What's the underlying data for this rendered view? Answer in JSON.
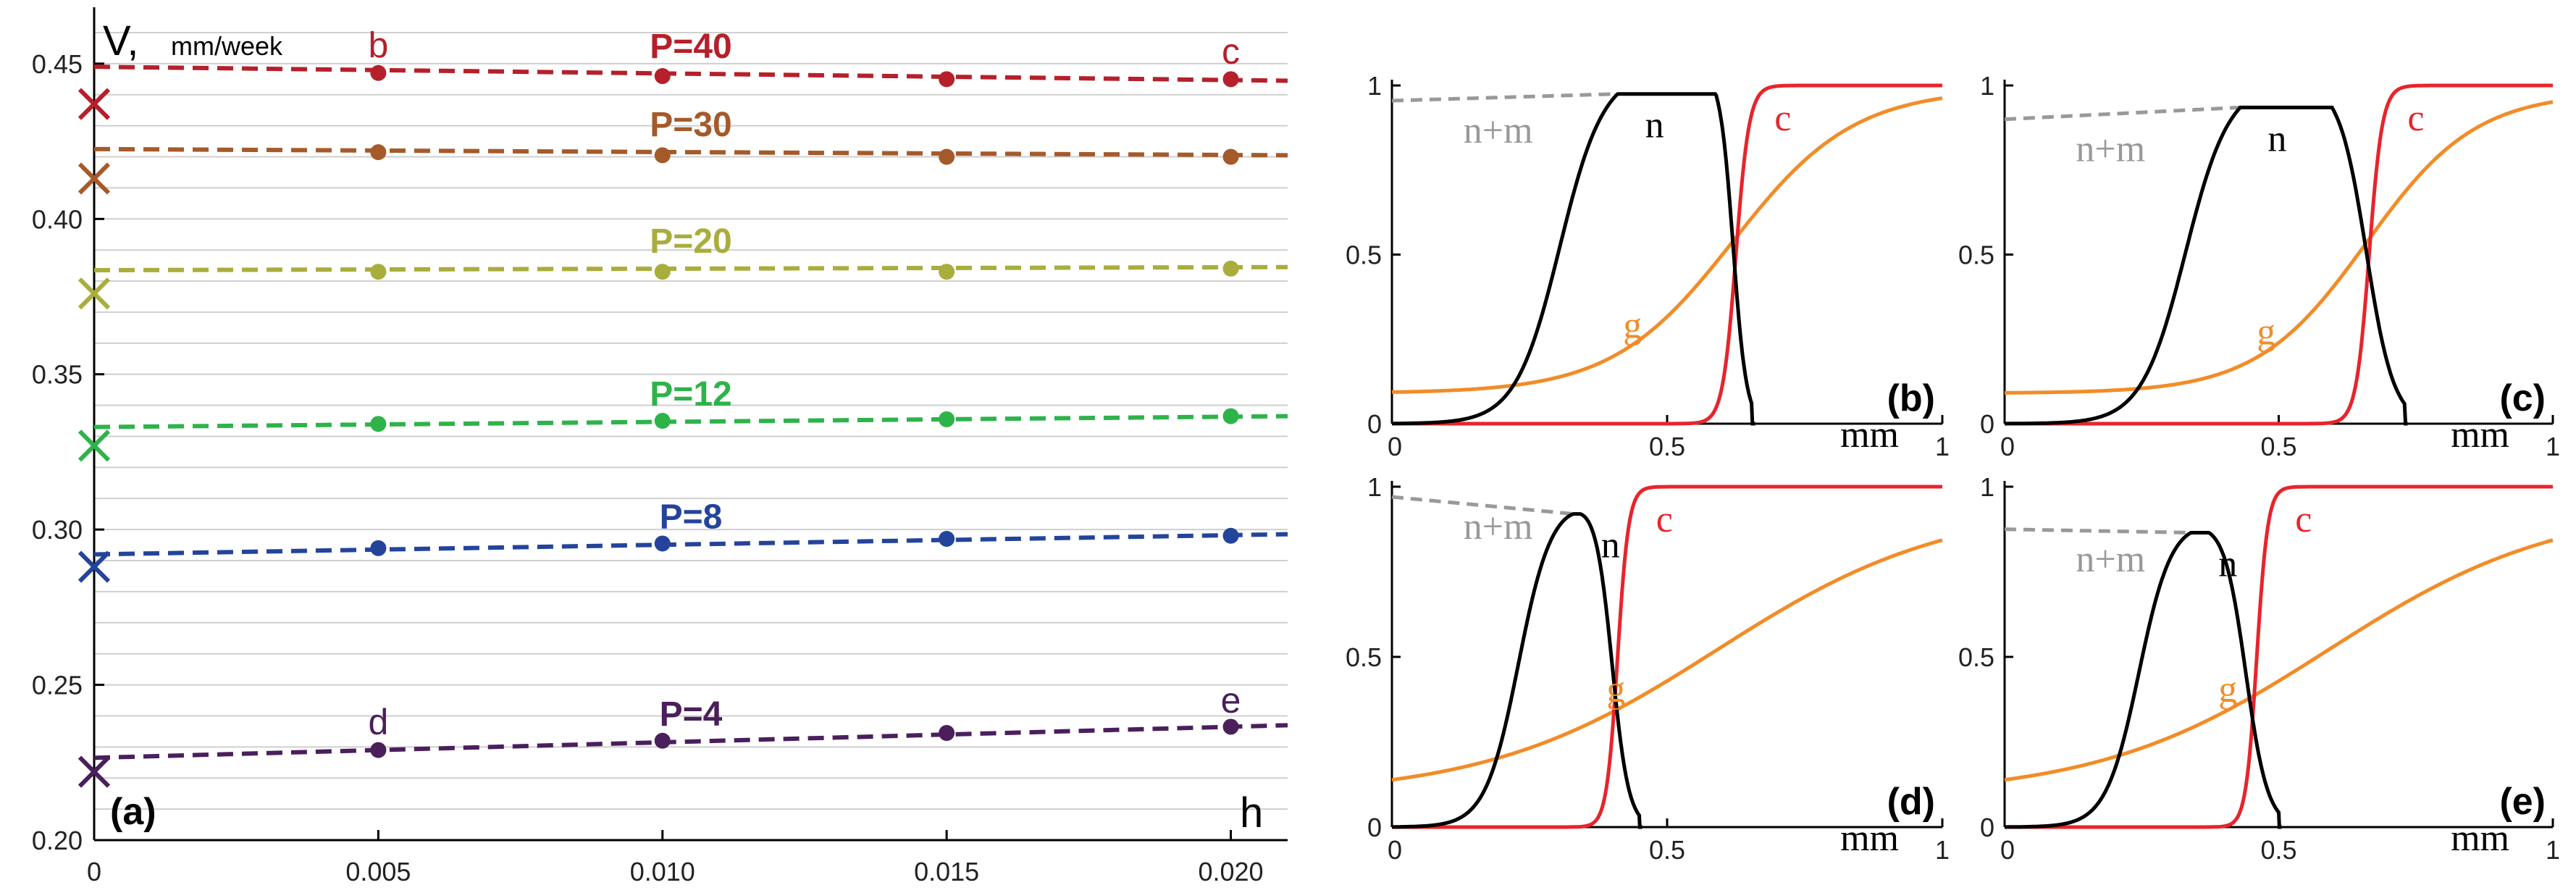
{
  "chart_data": [
    {
      "id": "a",
      "type": "line",
      "panel_label": "(a)",
      "ylabel": "V,",
      "ylabel_unit": "mm/week",
      "xlabel": "h",
      "xlim": [
        0,
        0.021
      ],
      "ylim": [
        0.2,
        0.46
      ],
      "x_ticks": [
        0,
        0.005,
        0.01,
        0.015,
        0.02
      ],
      "x_tick_labels": [
        "0",
        "0.005",
        "0.010",
        "0.015",
        "0.020"
      ],
      "y_ticks": [
        0.2,
        0.25,
        0.3,
        0.35,
        0.4,
        0.45
      ],
      "y_tick_labels": [
        "0.20",
        "0.25",
        "0.30",
        "0.35",
        "0.40",
        "0.45"
      ],
      "gridlines_every": 0.01,
      "x_points": [
        0.005,
        0.01,
        0.015,
        0.02
      ],
      "series": [
        {
          "name": "P=40",
          "color": "#b5202b",
          "fit": [
            0.449,
            0.4445
          ],
          "points": [
            0.447,
            0.446,
            0.445,
            0.445
          ],
          "limit": 0.437
        },
        {
          "name": "P=30",
          "color": "#a55a2a",
          "fit": [
            0.4225,
            0.4205
          ],
          "points": [
            0.4215,
            0.4205,
            0.42,
            0.42
          ],
          "limit": 0.413
        },
        {
          "name": "P=20",
          "color": "#a9ad3c",
          "fit": [
            0.3835,
            0.3845
          ],
          "points": [
            0.383,
            0.383,
            0.383,
            0.384
          ],
          "limit": 0.376
        },
        {
          "name": "P=12",
          "color": "#2eb34a",
          "fit": [
            0.333,
            0.3365
          ],
          "points": [
            0.334,
            0.335,
            0.3355,
            0.3365
          ],
          "limit": 0.327
        },
        {
          "name": "P=8",
          "color": "#24449b",
          "fit": [
            0.292,
            0.2985
          ],
          "points": [
            0.294,
            0.2955,
            0.297,
            0.298
          ],
          "limit": 0.288
        },
        {
          "name": "P=4",
          "color": "#4a1f5c",
          "fit": [
            0.2265,
            0.237
          ],
          "points": [
            0.229,
            0.232,
            0.2345,
            0.2365
          ],
          "limit": 0.222
        }
      ],
      "annotations": [
        {
          "text": "b",
          "x": 0.005,
          "y": 0.452,
          "color": "#b5202b"
        },
        {
          "text": "c",
          "x": 0.02,
          "y": 0.45,
          "color": "#b5202b"
        },
        {
          "text": "d",
          "x": 0.005,
          "y": 0.234,
          "color": "#4a1f5c"
        },
        {
          "text": "e",
          "x": 0.02,
          "y": 0.241,
          "color": "#4a1f5c"
        }
      ]
    },
    {
      "id": "b",
      "type": "line",
      "panel_label": "(b)",
      "xlabel": "mm",
      "xlim": [
        0,
        1
      ],
      "ylim": [
        0,
        1
      ],
      "x_tick_labels": [
        "0",
        "0.5",
        "1"
      ],
      "y_tick_labels": [
        "0",
        "0.5",
        "1"
      ],
      "labels": {
        "nm": "n+m",
        "n": "n",
        "g": "g",
        "c": "c"
      },
      "params": {
        "n_rise_mid": 0.305,
        "n_rise_w": 0.04,
        "n_peak_x": 0.41,
        "n_peak": 0.975,
        "n_fall_mid": 0.62,
        "n_fall_w": 0.012,
        "n_end": 0.655,
        "nm_left": 0.955,
        "g_base": 0.09,
        "g_top": 0.99,
        "g_mid": 0.62,
        "g_w": 0.11,
        "c_mid": 0.625,
        "c_w": 0.012
      }
    },
    {
      "id": "c",
      "type": "line",
      "panel_label": "(c)",
      "xlabel": "mm",
      "xlim": [
        0,
        1
      ],
      "ylim": [
        0,
        1
      ],
      "x_tick_labels": [
        "0",
        "0.5",
        "1"
      ],
      "y_tick_labels": [
        "0",
        "0.5",
        "1"
      ],
      "labels": {
        "nm": "n+m",
        "n": "n",
        "g": "g",
        "c": "c"
      },
      "params": {
        "n_rise_mid": 0.33,
        "n_rise_w": 0.04,
        "n_peak_x": 0.43,
        "n_peak": 0.935,
        "n_fall_mid": 0.66,
        "n_fall_w": 0.025,
        "n_end": 0.73,
        "nm_left": 0.9,
        "g_base": 0.09,
        "g_top": 0.98,
        "g_mid": 0.66,
        "g_w": 0.1,
        "c_mid": 0.665,
        "c_w": 0.012
      }
    },
    {
      "id": "d",
      "type": "line",
      "panel_label": "(d)",
      "xlabel": "mm",
      "xlim": [
        0,
        1
      ],
      "ylim": [
        0,
        1
      ],
      "x_tick_labels": [
        "0",
        "0.5",
        "1"
      ],
      "y_tick_labels": [
        "0",
        "0.5",
        "1"
      ],
      "labels": {
        "nm": "n+m",
        "n": "n",
        "g": "g",
        "c": "c"
      },
      "params": {
        "n_rise_mid": 0.23,
        "n_rise_w": 0.03,
        "n_peak_x": 0.33,
        "n_peak": 0.92,
        "n_fall_mid": 0.4,
        "n_fall_w": 0.015,
        "n_end": 0.45,
        "nm_left": 0.97,
        "g_base": 0.09,
        "g_top": 0.95,
        "g_mid": 0.59,
        "g_w": 0.21,
        "c_mid": 0.41,
        "c_w": 0.01
      }
    },
    {
      "id": "e",
      "type": "line",
      "panel_label": "(e)",
      "xlabel": "mm",
      "xlim": [
        0,
        1
      ],
      "ylim": [
        0,
        1
      ],
      "x_tick_labels": [
        "0",
        "0.5",
        "1"
      ],
      "y_tick_labels": [
        "0",
        "0.5",
        "1"
      ],
      "labels": {
        "nm": "n+m",
        "n": "n",
        "g": "g",
        "c": "c"
      },
      "params": {
        "n_rise_mid": 0.245,
        "n_rise_w": 0.03,
        "n_peak_x": 0.34,
        "n_peak": 0.865,
        "n_fall_mid": 0.44,
        "n_fall_w": 0.02,
        "n_end": 0.5,
        "nm_left": 0.875,
        "g_base": 0.09,
        "g_top": 0.95,
        "g_mid": 0.59,
        "g_w": 0.21,
        "c_mid": 0.46,
        "c_w": 0.01
      }
    }
  ],
  "colors": {
    "n": "#000000",
    "nm": "#999999",
    "g": "#f28c28",
    "c": "#e8242b",
    "grid": "#cfcfcf"
  }
}
